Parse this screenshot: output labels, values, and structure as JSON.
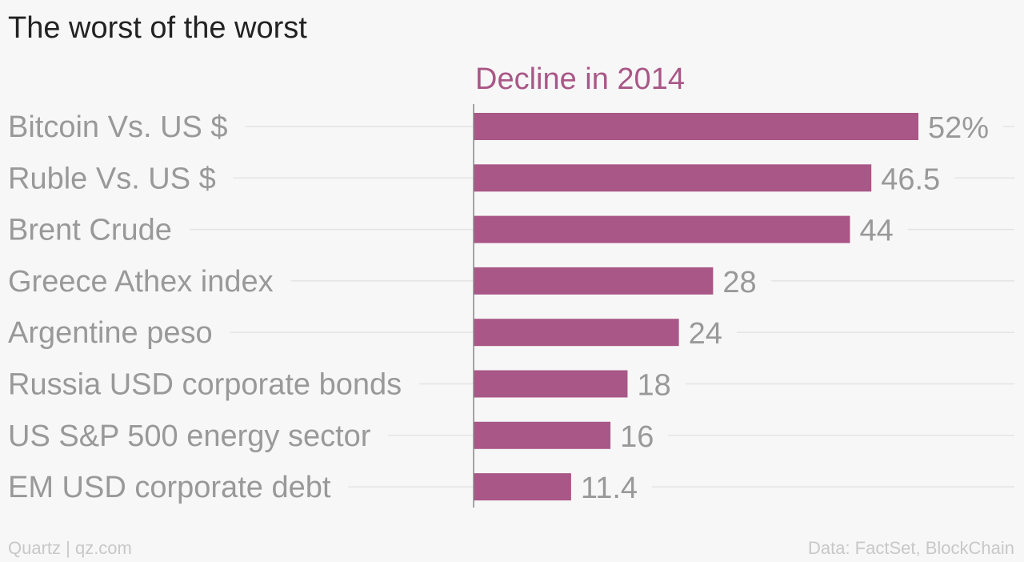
{
  "colors": {
    "bar": "#a95787",
    "series_title": "#a95787",
    "label": "#999999",
    "gridline": "#e4e4e4",
    "axis": "#888888"
  },
  "footer": {
    "source_left": "Quartz | qz.com",
    "source_right": "Data: FactSet, BlockChain"
  },
  "chart_data": {
    "type": "bar",
    "orientation": "horizontal",
    "title": "The worst of the worst",
    "series_title": "Decline in 2014",
    "categories": [
      "Bitcoin Vs. US $",
      "Ruble Vs. US $",
      "Brent Crude",
      "Greece Athex index",
      "Argentine peso",
      "Russia USD corporate bonds",
      "US S&P 500 energy sector",
      "EM USD corporate debt"
    ],
    "values": [
      52,
      46.5,
      44,
      28,
      24,
      18,
      16,
      11.4
    ],
    "value_labels": [
      "52%",
      "46.5",
      "44",
      "28",
      "24",
      "18",
      "16",
      "11.4"
    ],
    "xlim": [
      0,
      60
    ],
    "grid": true,
    "legend": "none"
  }
}
